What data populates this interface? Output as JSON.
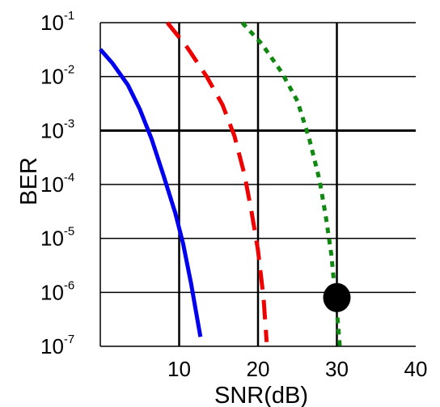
{
  "chart_data": {
    "type": "line",
    "title": "",
    "xlabel": "SNR(dB)",
    "ylabel": "BER",
    "xlim": [
      0,
      40
    ],
    "ylim": [
      1e-07,
      0.1
    ],
    "y_scale": "log",
    "grid": true,
    "legend": "none",
    "x_tick_labels": [
      "10",
      "20",
      "30",
      "40"
    ],
    "y_tick_labels": [
      {
        "base": "10",
        "exp": "-1"
      },
      {
        "base": "10",
        "exp": "-2"
      },
      {
        "base": "10",
        "exp": "-3"
      },
      {
        "base": "10",
        "exp": "-4"
      },
      {
        "base": "10",
        "exp": "-5"
      },
      {
        "base": "10",
        "exp": "-6"
      },
      {
        "base": "10",
        "exp": "-7"
      }
    ],
    "series": [
      {
        "color": "#0000ee",
        "style": "solid",
        "points": [
          [
            0,
            0.032
          ],
          [
            1.5,
            0.018
          ],
          [
            3.5,
            0.007
          ],
          [
            5,
            0.0025
          ],
          [
            6.5,
            0.0007
          ],
          [
            8,
            0.00015
          ],
          [
            9.5,
            3e-05
          ],
          [
            10.5,
            8e-06
          ],
          [
            11.5,
            1.5e-06
          ],
          [
            12.7,
            1.5e-07
          ]
        ]
      },
      {
        "color": "#ee0000",
        "style": "dashed",
        "points": [
          [
            8.5,
            0.1
          ],
          [
            11,
            0.035
          ],
          [
            13.5,
            0.01
          ],
          [
            15.5,
            0.003
          ],
          [
            17,
            0.0008
          ],
          [
            18.3,
            0.00015
          ],
          [
            19.2,
            3e-05
          ],
          [
            20,
            6e-06
          ],
          [
            20.7,
            8e-07
          ],
          [
            21.1,
            1.2e-07
          ]
        ]
      },
      {
        "color": "#118811",
        "style": "dotted",
        "points": [
          [
            18,
            0.1
          ],
          [
            20.5,
            0.04
          ],
          [
            23,
            0.012
          ],
          [
            25,
            0.0035
          ],
          [
            26.5,
            0.0007
          ],
          [
            27.8,
            0.00012
          ],
          [
            28.6,
            2.5e-05
          ],
          [
            29.3,
            5e-06
          ],
          [
            29.7,
            1.2e-06
          ],
          [
            30.1,
            3e-07
          ],
          [
            30.4,
            9e-08
          ]
        ]
      }
    ],
    "markers": [
      {
        "x": 30,
        "y": 8e-07,
        "color": "#000000"
      }
    ]
  }
}
